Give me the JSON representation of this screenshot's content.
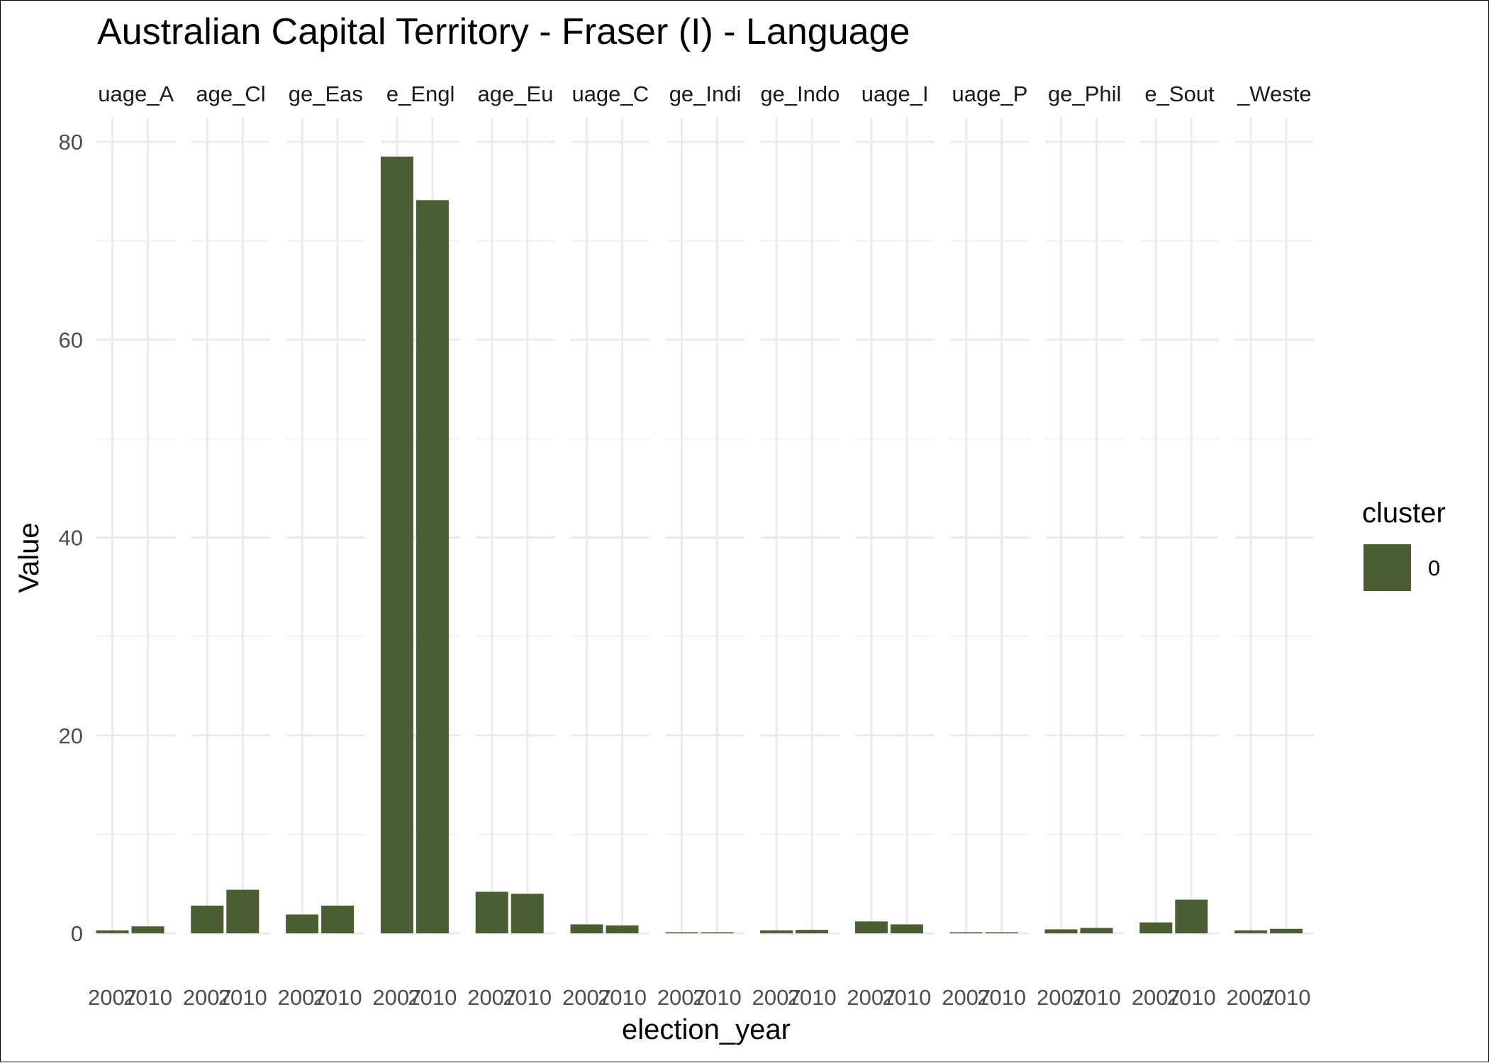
{
  "chart_data": {
    "type": "bar",
    "title": "Australian Capital Territory - Fraser (I) - Language",
    "xlabel": "election_year",
    "ylabel": "Value",
    "ylim": [
      0,
      82
    ],
    "y_ticks": [
      0,
      20,
      40,
      60,
      80
    ],
    "facet_labels": [
      "uage_A",
      "age_Cl",
      "ge_Eas",
      "e_Engl",
      "age_Eu",
      "uage_C",
      "ge_Indi",
      "ge_Indo",
      "uage_I",
      "uage_P",
      "ge_Phil",
      "e_Sout",
      "_Weste"
    ],
    "categories": [
      "2007",
      "2010"
    ],
    "series": [
      {
        "name": "0",
        "values": [
          [
            0.3,
            0.7
          ],
          [
            2.8,
            4.4
          ],
          [
            1.9,
            2.8
          ],
          [
            78.5,
            74.1
          ],
          [
            4.2,
            4.0
          ],
          [
            0.9,
            0.8
          ],
          [
            0.05,
            0.05
          ],
          [
            0.3,
            0.35
          ],
          [
            1.2,
            0.9
          ],
          [
            0.05,
            0.1
          ],
          [
            0.4,
            0.55
          ],
          [
            1.1,
            3.4
          ],
          [
            0.3,
            0.45
          ]
        ]
      }
    ],
    "legend": {
      "title": "cluster",
      "labels": [
        "0"
      ],
      "placement": "right"
    },
    "grid": true,
    "colors": {
      "bar": "#4a5e32",
      "grid": "#ebebeb"
    }
  }
}
